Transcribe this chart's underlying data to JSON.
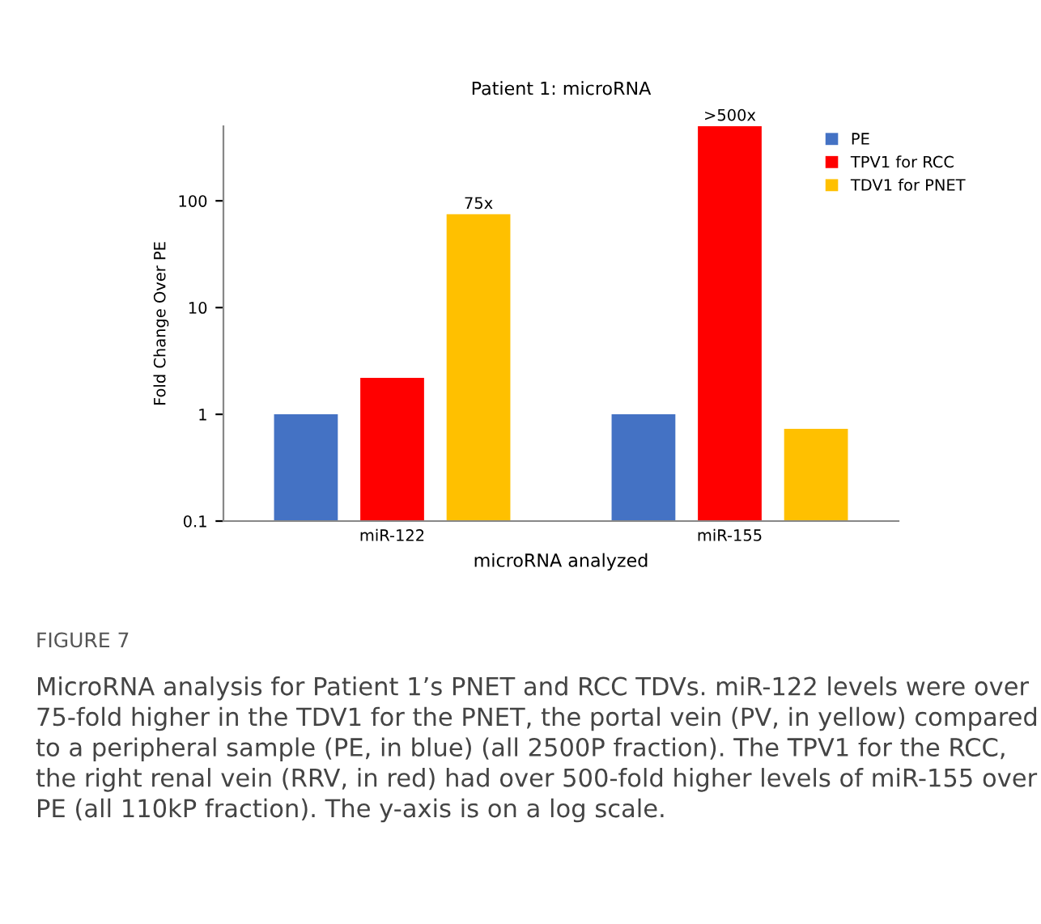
{
  "chart_data": {
    "type": "bar",
    "title": "Patient 1: microRNA",
    "xlabel": "microRNA analyzed",
    "ylabel": "Fold Change Over PE",
    "categories": [
      "miR-122",
      "miR-155"
    ],
    "series": [
      {
        "name": "PE",
        "color": "#4472c4",
        "values": [
          1,
          1
        ]
      },
      {
        "name": "TPV1 for RCC",
        "color": "#ff0000",
        "values": [
          2.2,
          500
        ],
        "value_labels": [
          null,
          ">500x"
        ]
      },
      {
        "name": "TDV1 for PNET",
        "color": "#ffc000",
        "values": [
          75,
          0.73
        ],
        "value_labels": [
          "75x",
          null
        ]
      }
    ],
    "log": "y",
    "ylim": [
      0.1,
      500
    ],
    "yticks": [
      0.1,
      1,
      10,
      100
    ],
    "grid": false,
    "legend": "top right",
    "annotations": [
      "FIGURE 7",
      "MicroRNA analysis for Patient 1’s PNET and RCC TDVs. miR-122 levels were over 75-fold higher in the TDV1 for the PNET, the portal vein (PV, in yellow) compared to a peripheral sample (PE, in blue) (all 2500P fraction). The TPV1 for the RCC, the right renal vein (RRV, in red) had over 500-fold higher levels of miR-155 over PE (all 110kP fraction). The y-axis is on a log scale."
    ]
  }
}
